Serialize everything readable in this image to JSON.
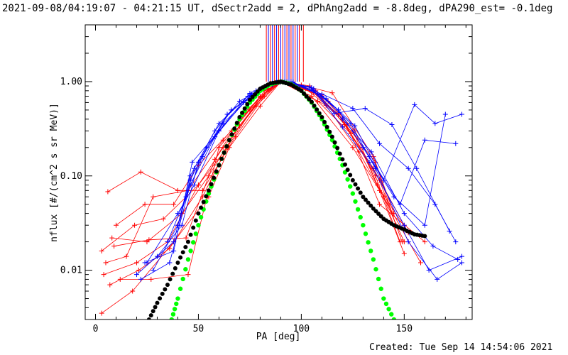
{
  "chart_data": {
    "type": "scatter",
    "title": "2021-09-08/04:19:07 - 04:21:15 UT, dSectr2add = 2, dPhAng2add = -8.8deg, dPA290_est= -0.1deg",
    "xlabel": "PA [deg]",
    "ylabel": "nflux [#/(cm^2 s sr MeV)]",
    "footer": "Created: Tue Sep 14 14:54:06 2021",
    "x_range": [
      -5,
      183
    ],
    "y_range": [
      0.003,
      4
    ],
    "y_scale": "log",
    "x_ticks": [
      0,
      50,
      100,
      150
    ],
    "x_tick_labels": [
      "0",
      "50",
      "100",
      "150"
    ],
    "y_ticks": [
      0.01,
      0.1,
      1
    ],
    "y_tick_labels": [
      "0.01",
      "0.10",
      "1.00"
    ],
    "colors": {
      "red": "#ff0000",
      "blue": "#0000ff",
      "black": "#000000",
      "green": "#00ff00"
    },
    "series": [
      {
        "color": "red",
        "x": [
          3,
          18,
          38,
          55,
          65,
          80,
          90,
          105,
          125,
          140,
          150
        ],
        "y": [
          0.0035,
          0.006,
          0.02,
          0.06,
          0.2,
          0.55,
          1.0,
          0.7,
          0.2,
          0.06,
          0.02
        ]
      },
      {
        "color": "red",
        "x": [
          6,
          22,
          40,
          52,
          68,
          82,
          90,
          100,
          115,
          135,
          145
        ],
        "y": [
          0.068,
          0.11,
          0.07,
          0.07,
          0.26,
          0.7,
          1.0,
          0.92,
          0.76,
          0.16,
          0.04
        ]
      },
      {
        "color": "red",
        "x": [
          4,
          20,
          35,
          50,
          62,
          78,
          90,
          108,
          124,
          138,
          160
        ],
        "y": [
          0.009,
          0.012,
          0.02,
          0.08,
          0.2,
          0.55,
          1.0,
          0.62,
          0.28,
          0.05,
          0.02
        ]
      },
      {
        "color": "red",
        "x": [
          8,
          25,
          42,
          55,
          70,
          84,
          90,
          102,
          118,
          135,
          150
        ],
        "y": [
          0.022,
          0.02,
          0.04,
          0.1,
          0.34,
          0.82,
          1.0,
          0.84,
          0.45,
          0.12,
          0.03
        ]
      },
      {
        "color": "red",
        "x": [
          5,
          15,
          28,
          45,
          62,
          80,
          90,
          112,
          128,
          140,
          158
        ],
        "y": [
          0.012,
          0.014,
          0.06,
          0.07,
          0.24,
          0.68,
          1.0,
          0.56,
          0.18,
          0.06,
          0.012
        ]
      },
      {
        "color": "red",
        "x": [
          10,
          24,
          38,
          50,
          66,
          80,
          90,
          106,
          120,
          136,
          148
        ],
        "y": [
          0.03,
          0.05,
          0.05,
          0.13,
          0.3,
          0.7,
          1.0,
          0.76,
          0.4,
          0.1,
          0.02
        ]
      },
      {
        "color": "red",
        "x": [
          12,
          27,
          45,
          60,
          75,
          88,
          96,
          113,
          126,
          138,
          150
        ],
        "y": [
          0.008,
          0.008,
          0.009,
          0.2,
          0.5,
          0.94,
          0.98,
          0.62,
          0.3,
          0.07,
          0.015
        ]
      },
      {
        "color": "red",
        "x": [
          3,
          19,
          33,
          50,
          64,
          82,
          92,
          104,
          122,
          136,
          146
        ],
        "y": [
          0.016,
          0.03,
          0.035,
          0.08,
          0.2,
          0.8,
          0.99,
          0.9,
          0.34,
          0.14,
          0.03
        ]
      },
      {
        "color": "red",
        "x": [
          7,
          21,
          36,
          52,
          68,
          84,
          91,
          110,
          125,
          137,
          152
        ],
        "y": [
          0.007,
          0.01,
          0.017,
          0.06,
          0.3,
          0.84,
          1.0,
          0.72,
          0.3,
          0.08,
          0.025
        ]
      },
      {
        "color": "red",
        "x": [
          9,
          26,
          44,
          58,
          72,
          86,
          93,
          107,
          121,
          138,
          149
        ],
        "y": [
          0.018,
          0.021,
          0.022,
          0.15,
          0.46,
          0.9,
          0.99,
          0.8,
          0.35,
          0.09,
          0.02
        ]
      },
      {
        "color": "blue",
        "x": [
          25,
          40,
          48,
          60,
          75,
          85,
          92,
          110,
          125,
          138,
          152,
          165,
          175
        ],
        "y": [
          0.012,
          0.04,
          0.08,
          0.3,
          0.75,
          0.95,
          1.0,
          0.74,
          0.52,
          0.22,
          0.12,
          0.05,
          0.02
        ]
      },
      {
        "color": "blue",
        "x": [
          20,
          38,
          46,
          58,
          70,
          84,
          91,
          105,
          120,
          133,
          150,
          162,
          178
        ],
        "y": [
          0.009,
          0.02,
          0.1,
          0.3,
          0.62,
          0.91,
          1.0,
          0.86,
          0.33,
          0.14,
          0.03,
          0.01,
          0.014
        ]
      },
      {
        "color": "blue",
        "x": [
          30,
          42,
          50,
          62,
          78,
          88,
          94,
          108,
          118,
          130,
          145,
          160,
          170
        ],
        "y": [
          0.014,
          0.03,
          0.14,
          0.36,
          0.8,
          0.98,
          1.0,
          0.74,
          0.5,
          0.2,
          0.06,
          0.03,
          0.45
        ]
      },
      {
        "color": "blue",
        "x": [
          35,
          44,
          52,
          64,
          80,
          89,
          96,
          112,
          126,
          140,
          155,
          165,
          178
        ],
        "y": [
          0.02,
          0.06,
          0.16,
          0.45,
          0.84,
          0.98,
          0.99,
          0.66,
          0.34,
          0.09,
          0.57,
          0.36,
          0.45
        ]
      },
      {
        "color": "blue",
        "x": [
          28,
          40,
          48,
          60,
          74,
          86,
          93,
          106,
          118,
          133,
          148,
          160,
          175
        ],
        "y": [
          0.01,
          0.03,
          0.12,
          0.36,
          0.7,
          0.95,
          1.0,
          0.84,
          0.5,
          0.16,
          0.05,
          0.24,
          0.22
        ]
      },
      {
        "color": "blue",
        "x": [
          22,
          36,
          46,
          58,
          72,
          86,
          92,
          104,
          116,
          131,
          144,
          156,
          172
        ],
        "y": [
          0.008,
          0.012,
          0.08,
          0.26,
          0.6,
          0.92,
          1.0,
          0.88,
          0.46,
          0.52,
          0.35,
          0.12,
          0.026
        ]
      },
      {
        "color": "blue",
        "x": [
          40,
          46,
          54,
          66,
          80,
          90,
          96,
          110,
          124,
          136,
          152,
          166,
          178
        ],
        "y": [
          0.03,
          0.09,
          0.2,
          0.5,
          0.8,
          0.99,
          0.99,
          0.7,
          0.36,
          0.12,
          0.02,
          0.008,
          0.012
        ]
      },
      {
        "color": "blue",
        "x": [
          24,
          38,
          47,
          60,
          76,
          88,
          95,
          106,
          120,
          134,
          150,
          164,
          176
        ],
        "y": [
          0.012,
          0.016,
          0.14,
          0.3,
          0.74,
          0.97,
          1.0,
          0.8,
          0.4,
          0.18,
          0.04,
          0.018,
          0.013
        ]
      }
    ],
    "black_fit": {
      "color": "black",
      "x": [
        26,
        30,
        35,
        40,
        45,
        50,
        55,
        60,
        65,
        70,
        75,
        80,
        85,
        90,
        95,
        100,
        105,
        110,
        115,
        120,
        125,
        130,
        135,
        140,
        145,
        150,
        155,
        160
      ],
      "y": [
        0.003,
        0.0045,
        0.007,
        0.012,
        0.02,
        0.04,
        0.07,
        0.13,
        0.24,
        0.42,
        0.64,
        0.84,
        0.96,
        1.0,
        0.93,
        0.8,
        0.61,
        0.42,
        0.26,
        0.15,
        0.09,
        0.06,
        0.045,
        0.035,
        0.03,
        0.027,
        0.024,
        0.023
      ]
    },
    "green_fit": {
      "color": "green",
      "x": [
        37,
        40,
        45,
        50,
        55,
        60,
        65,
        70,
        75,
        80,
        85,
        90,
        95,
        100,
        105,
        110,
        115,
        120,
        125,
        130,
        135,
        140,
        145
      ],
      "y": [
        0.003,
        0.005,
        0.013,
        0.03,
        0.065,
        0.13,
        0.24,
        0.4,
        0.6,
        0.8,
        0.94,
        1.0,
        0.94,
        0.8,
        0.6,
        0.4,
        0.24,
        0.13,
        0.065,
        0.03,
        0.013,
        0.005,
        0.003
      ]
    },
    "vertical_lines": {
      "y_from": 1.0,
      "y_to": 4,
      "red_x": [
        83,
        85,
        87,
        89,
        91,
        93,
        95,
        97,
        99,
        101
      ],
      "blue_x": [
        84,
        86,
        88,
        90,
        92,
        94,
        96,
        98
      ]
    }
  }
}
